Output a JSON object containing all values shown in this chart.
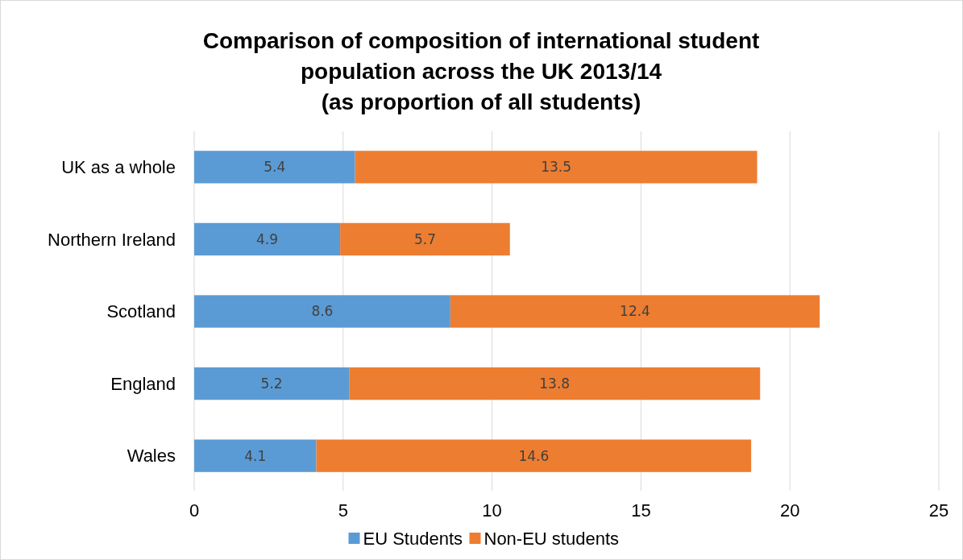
{
  "chart_data": {
    "type": "bar",
    "orientation": "horizontal",
    "stacked": true,
    "title": "Comparison of composition of international student\npopulation across the UK 2013/14\n(as proportion of all students)",
    "categories": [
      "UK as a whole",
      "Northern Ireland",
      "Scotland",
      "England",
      "Wales"
    ],
    "series": [
      {
        "name": "EU Students",
        "color": "#5b9bd5",
        "values": [
          5.4,
          4.9,
          8.6,
          5.2,
          4.1
        ]
      },
      {
        "name": "Non-EU students",
        "color": "#ed7d31",
        "values": [
          13.5,
          5.7,
          12.4,
          13.8,
          14.6
        ]
      }
    ],
    "xlim": [
      0,
      25
    ],
    "xticks": [
      0,
      5,
      10,
      15,
      20,
      25
    ],
    "grid": "x",
    "legend": "bottom",
    "data_labels": true
  }
}
